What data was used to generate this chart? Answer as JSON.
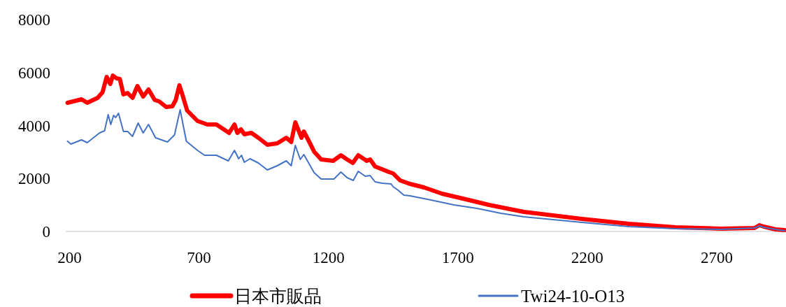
{
  "chart_data": {
    "type": "line",
    "xlim": [
      185,
      2965
    ],
    "xticks": [
      200,
      700,
      1200,
      1700,
      2200,
      2700
    ],
    "ylim": [
      0,
      8000
    ],
    "yticks": [
      0,
      2000,
      4000,
      6000,
      8000
    ],
    "grid": false,
    "legend": "bottom",
    "marker": "none",
    "line_style": "solid",
    "series": [
      {
        "name": "日本市販品",
        "color": "#ff0000",
        "x": [
          192,
          246,
          268,
          308,
          327,
          343,
          357,
          367,
          381,
          394,
          408,
          424,
          443,
          462,
          484,
          505,
          529,
          546,
          573,
          597,
          610,
          624,
          637,
          654,
          694,
          732,
          767,
          816,
          837,
          848,
          862,
          875,
          902,
          929,
          964,
          1002,
          1037,
          1056,
          1072,
          1096,
          1105,
          1126,
          1145,
          1172,
          1218,
          1248,
          1272,
          1294,
          1315,
          1348,
          1361,
          1380,
          1407,
          1434,
          1450,
          1477,
          1515,
          1569,
          1639,
          1731,
          1820,
          1955,
          2179,
          2360,
          2541,
          2719,
          2846,
          2865,
          2881,
          2927,
          2962
        ],
        "values": [
          4858,
          4990,
          4858,
          5042,
          5254,
          5834,
          5570,
          5887,
          5782,
          5755,
          5174,
          5227,
          5042,
          5491,
          5095,
          5359,
          4963,
          4910,
          4699,
          4726,
          4963,
          5518,
          5122,
          4567,
          4171,
          4039,
          4039,
          3722,
          4039,
          3722,
          3854,
          3670,
          3722,
          3538,
          3274,
          3326,
          3538,
          3379,
          4118,
          3538,
          3775,
          3379,
          3010,
          2719,
          2666,
          2878,
          2719,
          2587,
          2878,
          2666,
          2719,
          2455,
          2350,
          2244,
          2191,
          1927,
          1795,
          1663,
          1426,
          1214,
          1003,
          739,
          475,
          290,
          158,
          106,
          132,
          238,
          185,
          79,
          53
        ]
      },
      {
        "name": "Twi24-10-O13",
        "color": "#4472c4",
        "x": [
          192,
          205,
          246,
          268,
          316,
          335,
          349,
          359,
          370,
          378,
          389,
          408,
          424,
          443,
          465,
          484,
          505,
          532,
          578,
          605,
          627,
          651,
          694,
          721,
          767,
          813,
          837,
          853,
          864,
          875,
          897,
          929,
          964,
          1002,
          1037,
          1056,
          1072,
          1091,
          1105,
          1145,
          1172,
          1221,
          1248,
          1272,
          1296,
          1315,
          1342,
          1361,
          1380,
          1407,
          1442,
          1450,
          1469,
          1491,
          1515,
          1596,
          1685,
          1774,
          1866,
          1955,
          2179,
          2360,
          2541,
          2719,
          2846,
          2865,
          2881,
          2927,
          2962
        ],
        "values": [
          3406,
          3300,
          3458,
          3353,
          3722,
          3802,
          4409,
          4039,
          4382,
          4303,
          4462,
          3775,
          3775,
          3590,
          4092,
          3722,
          4039,
          3538,
          3379,
          3643,
          4594,
          3406,
          3062,
          2878,
          2878,
          2666,
          3062,
          2746,
          2878,
          2614,
          2746,
          2587,
          2323,
          2482,
          2666,
          2482,
          3247,
          2719,
          2904,
          2218,
          1980,
          1980,
          2244,
          2033,
          1927,
          2270,
          2086,
          2112,
          1874,
          1822,
          1795,
          1690,
          1558,
          1373,
          1346,
          1188,
          1003,
          871,
          686,
          554,
          343,
          185,
          106,
          79,
          132,
          211,
          158,
          79,
          26
        ]
      }
    ]
  }
}
